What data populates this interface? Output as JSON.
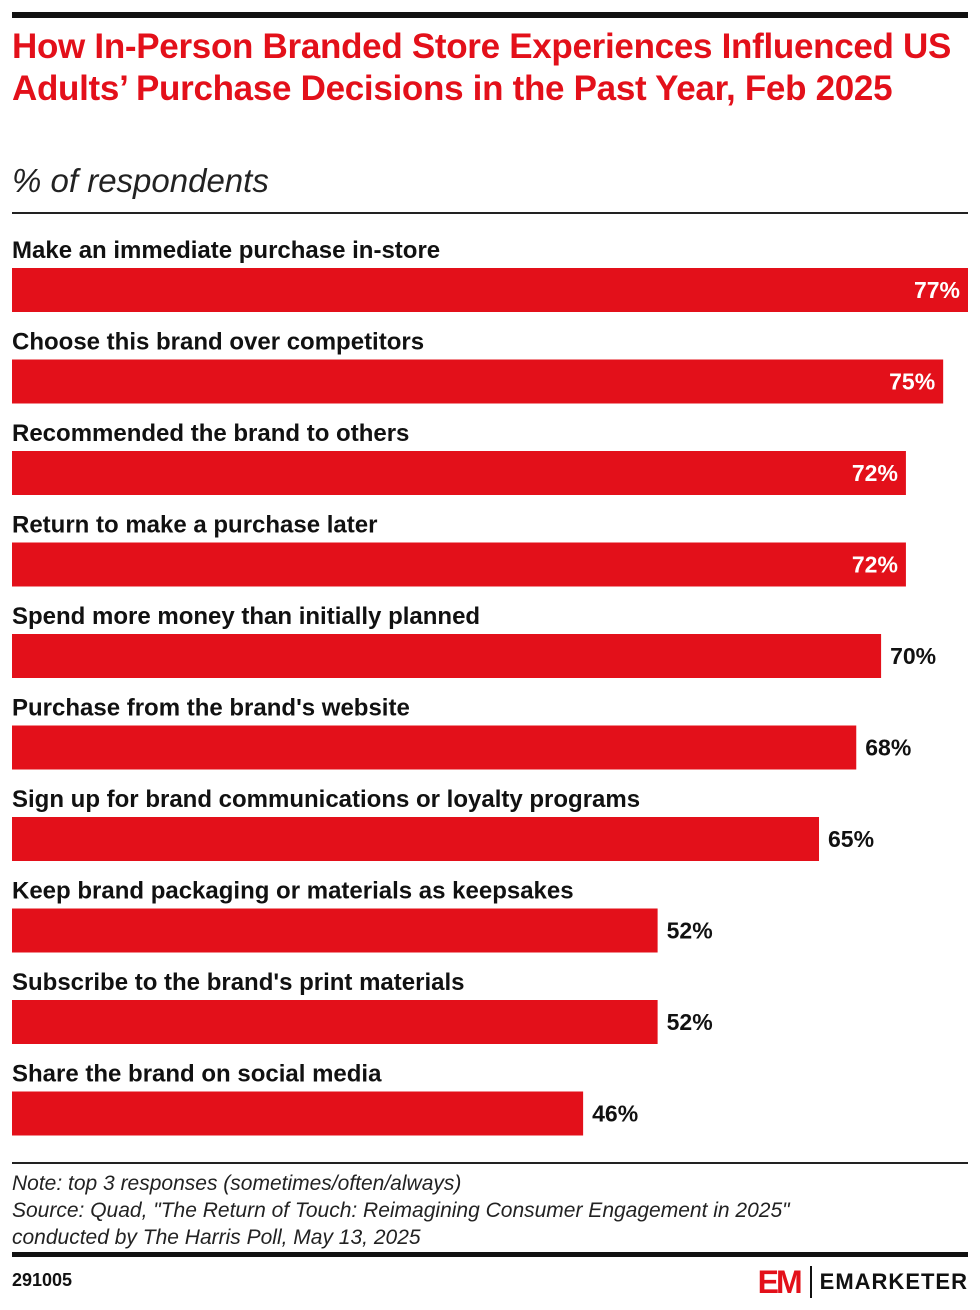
{
  "header": {
    "title": "How In-Person Branded Store Experiences Influenced US Adults’ Purchase Decisions in the Past Year, Feb 2025",
    "subtitle": "% of respondents"
  },
  "chart_data": {
    "type": "bar",
    "orientation": "horizontal",
    "categories": [
      "Make an immediate purchase in-store",
      "Choose this brand over competitors",
      "Recommended the brand to others",
      "Return to make a purchase later",
      "Spend more money than initially planned",
      "Purchase from the brand's website",
      "Sign up for brand communications or loyalty programs",
      "Keep brand packaging or materials as keepsakes",
      "Subscribe to the brand's print materials",
      "Share the brand on social media"
    ],
    "values": [
      77,
      75,
      72,
      72,
      70,
      68,
      65,
      52,
      52,
      46
    ],
    "labels": [
      "77%",
      "75%",
      "72%",
      "72%",
      "70%",
      "68%",
      "65%",
      "52%",
      "52%",
      "46%"
    ],
    "unit": "%",
    "xlim": [
      0,
      77
    ],
    "bar_color": "#e3101a",
    "grid": false
  },
  "footer": {
    "note": "Note: top 3 responses (sometimes/often/always)",
    "source_line1": "Source: Quad, \"The Return of Touch: Reimagining Consumer Engagement in 2025\"",
    "source_line2": "conducted by The Harris Poll, May 13, 2025",
    "chart_id": "291005",
    "brand_mark": "EM",
    "brand_name": "EMARKETER"
  }
}
